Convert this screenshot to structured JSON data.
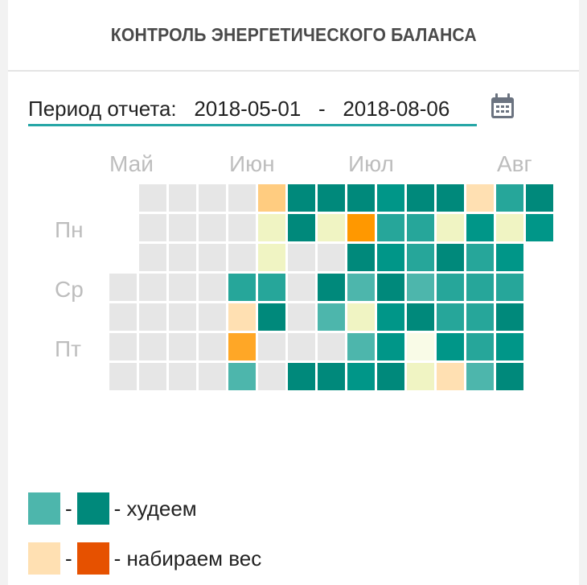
{
  "header": {
    "title": "КОНТРОЛЬ ЭНЕРГЕТИЧЕСКОГО БАЛАНСА"
  },
  "period": {
    "label": "Период отчета:",
    "start": "2018-05-01",
    "separator": "-",
    "end": "2018-08-06",
    "icon": "calendar-icon"
  },
  "months": [
    "Май",
    "Июн",
    "Июл",
    "Авг"
  ],
  "days": [
    "Пн",
    "Ср",
    "Пт"
  ],
  "palette": {
    "E": "#e6e6e6",
    "D": "#00897b",
    "T": "#009688",
    "M": "#26a69a",
    "L": "#4db6ac",
    "Y": "#f0f4c3",
    "W": "#f9fbe7",
    "P": "#ffe0b2",
    "O": "#ffcc80",
    "A": "#ffa726",
    "R": "#ff9800"
  },
  "grid": [
    ".EEEEODDDTDDPMD",
    ".EEEEYDYRMMYTYT",
    ".EEEEYEEDTMDMT.",
    "EEEEMMEDLDLMMM.",
    "EEEEPDELYTDMMD.",
    "EEEEAEEELTWTMT.",
    "EEEELEDDTDYPLD."
  ],
  "legend": [
    {
      "colors": [
        "#4db6ac",
        "#00897b"
      ],
      "dash": "-",
      "label": "- худеем"
    },
    {
      "colors": [
        "#ffe0b2",
        "#e65100"
      ],
      "dash": "-",
      "label": "- набираем вес"
    }
  ]
}
